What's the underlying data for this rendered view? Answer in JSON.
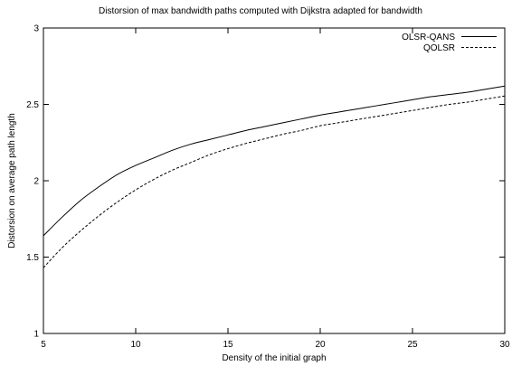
{
  "chart_data": {
    "type": "line",
    "title": "Distorsion of max bandwidth paths computed with Dijkstra adapted for bandwidth",
    "xlabel": "Density of the initial graph",
    "ylabel": "Distorsion on average path length",
    "xlim": [
      5,
      30
    ],
    "ylim": [
      1,
      3
    ],
    "xticks": [
      "5",
      "10",
      "15",
      "20",
      "25",
      "30"
    ],
    "yticks": [
      "1",
      "1.5",
      "2",
      "2.5",
      "3"
    ],
    "grid": false,
    "legend_position": "top-right",
    "series": [
      {
        "name": "OLSR-QANS",
        "style": "solid",
        "color": "#000000",
        "x": [
          5,
          6,
          7,
          8,
          9,
          10,
          11,
          12,
          13,
          14,
          15,
          16,
          17,
          18,
          19,
          20,
          21,
          22,
          23,
          24,
          25,
          26,
          27,
          28,
          29,
          30
        ],
        "y": [
          1.64,
          1.76,
          1.87,
          1.96,
          2.04,
          2.1,
          2.15,
          2.2,
          2.24,
          2.27,
          2.3,
          2.33,
          2.355,
          2.38,
          2.405,
          2.43,
          2.45,
          2.47,
          2.49,
          2.51,
          2.53,
          2.55,
          2.565,
          2.58,
          2.6,
          2.62
        ]
      },
      {
        "name": "QOLSR",
        "style": "dashed",
        "color": "#000000",
        "x": [
          5,
          6,
          7,
          8,
          9,
          10,
          11,
          12,
          13,
          14,
          15,
          16,
          17,
          18,
          19,
          20,
          21,
          22,
          23,
          24,
          25,
          26,
          27,
          28,
          29,
          30
        ],
        "y": [
          1.43,
          1.56,
          1.67,
          1.77,
          1.86,
          1.94,
          2.01,
          2.07,
          2.12,
          2.17,
          2.21,
          2.245,
          2.275,
          2.305,
          2.33,
          2.36,
          2.38,
          2.4,
          2.42,
          2.44,
          2.46,
          2.48,
          2.5,
          2.515,
          2.535,
          2.555
        ]
      }
    ]
  }
}
